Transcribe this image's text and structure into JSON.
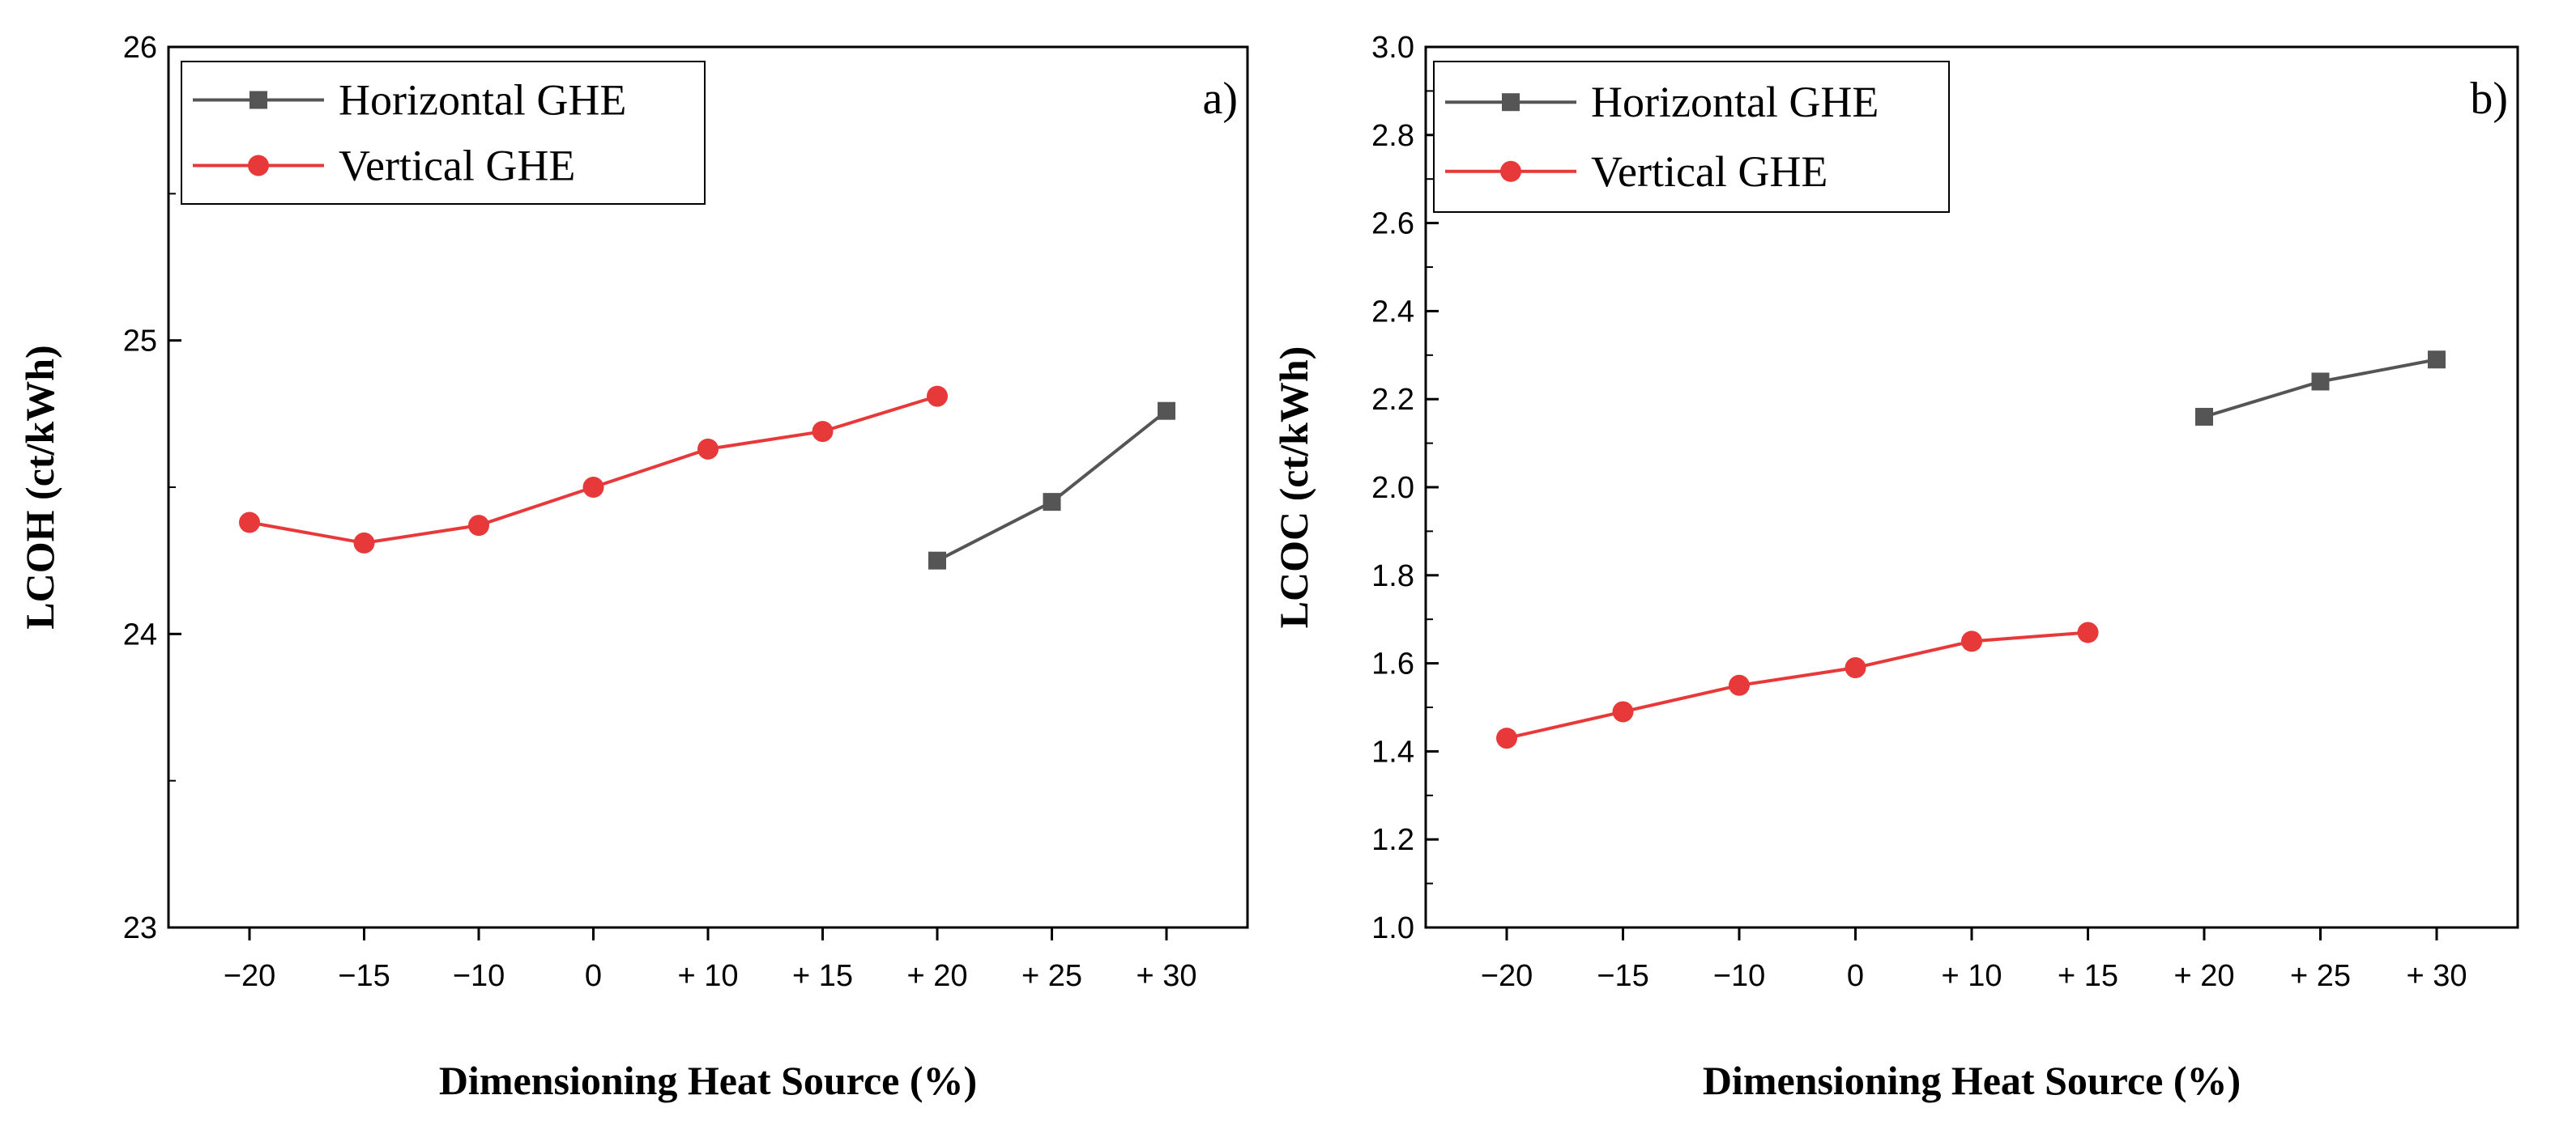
{
  "colors": {
    "horizontal": "#555555",
    "vertical": "#e8393a",
    "axis": "#000000"
  },
  "chart_data": [
    {
      "type": "line",
      "panel_label": "a)",
      "xlabel": "Dimensioning Heat Source (%)",
      "ylabel": "LCOH (ct/kWh)",
      "categories": [
        "−20",
        "−15",
        "−10",
        "0",
        "+ 10",
        "+ 15",
        "+ 20",
        "+ 25",
        "+ 30"
      ],
      "ylim": [
        23,
        26
      ],
      "yticks": [
        "23",
        "24",
        "25",
        "26"
      ],
      "ymajor": [
        23,
        24,
        25,
        26
      ],
      "yminor": [
        23.5,
        24.5,
        25.5
      ],
      "legend_position": "top-left",
      "series": [
        {
          "name": "Horizontal GHE",
          "marker": "square",
          "color_key": "horizontal",
          "points": [
            {
              "category": "+ 20",
              "value": 24.25
            },
            {
              "category": "+ 25",
              "value": 24.45
            },
            {
              "category": "+ 30",
              "value": 24.76
            }
          ]
        },
        {
          "name": "Vertical GHE",
          "marker": "circle",
          "color_key": "vertical",
          "points": [
            {
              "category": "−20",
              "value": 24.38
            },
            {
              "category": "−15",
              "value": 24.31
            },
            {
              "category": "−10",
              "value": 24.37
            },
            {
              "category": "0",
              "value": 24.5
            },
            {
              "category": "+ 10",
              "value": 24.63
            },
            {
              "category": "+ 15",
              "value": 24.69
            },
            {
              "category": "+ 20",
              "value": 24.81
            }
          ]
        }
      ]
    },
    {
      "type": "line",
      "panel_label": "b)",
      "xlabel": "Dimensioning Heat Source (%)",
      "ylabel": "LCOC (ct/kWh)",
      "categories": [
        "−20",
        "−15",
        "−10",
        "0",
        "+ 10",
        "+ 15",
        "+ 20",
        "+ 25",
        "+ 30"
      ],
      "ylim": [
        1.0,
        3.0
      ],
      "yticks": [
        "1.0",
        "1.2",
        "1.4",
        "1.6",
        "1.8",
        "2.0",
        "2.2",
        "2.4",
        "2.6",
        "2.8",
        "3.0"
      ],
      "ymajor": [
        1.0,
        1.2,
        1.4,
        1.6,
        1.8,
        2.0,
        2.2,
        2.4,
        2.6,
        2.8,
        3.0
      ],
      "yminor": [
        1.1,
        1.3,
        1.5,
        1.7,
        1.9,
        2.1,
        2.3,
        2.5,
        2.7,
        2.9
      ],
      "legend_position": "top-left",
      "series": [
        {
          "name": "Horizontal GHE",
          "marker": "square",
          "color_key": "horizontal",
          "points": [
            {
              "category": "+ 20",
              "value": 2.16
            },
            {
              "category": "+ 25",
              "value": 2.24
            },
            {
              "category": "+ 30",
              "value": 2.29
            }
          ]
        },
        {
          "name": "Vertical GHE",
          "marker": "circle",
          "color_key": "vertical",
          "points": [
            {
              "category": "−20",
              "value": 1.43
            },
            {
              "category": "−15",
              "value": 1.49
            },
            {
              "category": "−10",
              "value": 1.55
            },
            {
              "category": "0",
              "value": 1.59
            },
            {
              "category": "+ 10",
              "value": 1.65
            },
            {
              "category": "+ 15",
              "value": 1.67
            }
          ]
        }
      ]
    }
  ]
}
